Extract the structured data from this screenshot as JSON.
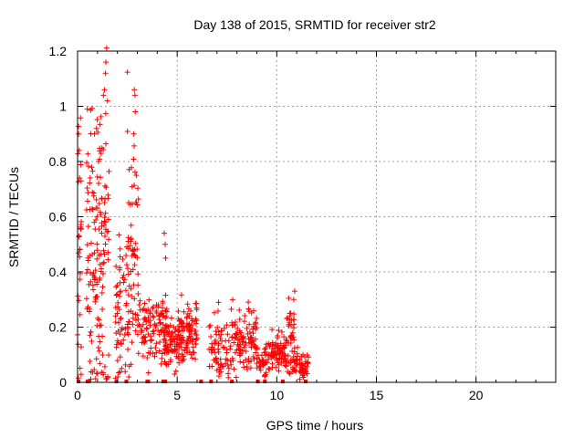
{
  "chart_data": {
    "type": "scatter",
    "title": "Day 138 of 2015, SRMTID for receiver str2",
    "xlabel": "GPS time / hours",
    "ylabel": "SRMTID / TECUs",
    "xlim": [
      0,
      24
    ],
    "ylim": [
      0,
      1.2
    ],
    "xticks": [
      0,
      5,
      10,
      15,
      20
    ],
    "xtick_labels": [
      "0",
      "5",
      "10",
      "15",
      "20"
    ],
    "yticks": [
      0,
      0.2,
      0.4,
      0.6,
      0.8,
      1,
      1.2
    ],
    "ytick_labels": [
      "0",
      "0.2",
      "0.4",
      "0.6",
      "0.8",
      "1",
      "1.2"
    ],
    "grid": true,
    "marker": "+",
    "color": "#ff0000",
    "series": [
      {
        "name": "SRMTID",
        "segments": [
          {
            "start": 0.0,
            "end": 0.2,
            "count": 28,
            "base": 0.5,
            "spread": 0.35
          },
          {
            "start": 0.45,
            "end": 1.6,
            "count": 160,
            "base": 0.45,
            "spread": 0.45
          },
          {
            "start": 1.9,
            "end": 2.6,
            "count": 70,
            "base": 0.25,
            "spread": 0.2
          },
          {
            "start": 2.5,
            "end": 3.1,
            "count": 60,
            "base": 0.45,
            "spread": 0.4
          },
          {
            "start": 3.0,
            "end": 3.5,
            "count": 35,
            "base": 0.2,
            "spread": 0.1
          },
          {
            "start": 3.5,
            "end": 4.5,
            "count": 80,
            "base": 0.2,
            "spread": 0.1
          },
          {
            "start": 4.4,
            "end": 5.3,
            "count": 90,
            "base": 0.15,
            "spread": 0.08
          },
          {
            "start": 5.2,
            "end": 6.0,
            "count": 80,
            "base": 0.18,
            "spread": 0.1
          },
          {
            "start": 6.6,
            "end": 7.7,
            "count": 70,
            "base": 0.13,
            "spread": 0.1
          },
          {
            "start": 7.7,
            "end": 9.0,
            "count": 110,
            "base": 0.16,
            "spread": 0.1
          },
          {
            "start": 9.0,
            "end": 9.6,
            "count": 40,
            "base": 0.08,
            "spread": 0.05
          },
          {
            "start": 9.6,
            "end": 10.5,
            "count": 80,
            "base": 0.1,
            "spread": 0.06
          },
          {
            "start": 10.5,
            "end": 10.9,
            "count": 40,
            "base": 0.18,
            "spread": 0.12
          },
          {
            "start": 10.8,
            "end": 11.6,
            "count": 60,
            "base": 0.06,
            "spread": 0.04
          }
        ],
        "peaks": [
          {
            "x": 0.05,
            "y": 0.9
          },
          {
            "x": 0.08,
            "y": 0.84
          },
          {
            "x": 0.1,
            "y": 0.74
          },
          {
            "x": 0.85,
            "y": 0.9
          },
          {
            "x": 0.95,
            "y": 0.92
          },
          {
            "x": 1.05,
            "y": 0.8
          },
          {
            "x": 1.3,
            "y": 1.04
          },
          {
            "x": 1.35,
            "y": 1.06
          },
          {
            "x": 1.4,
            "y": 1.12
          },
          {
            "x": 1.42,
            "y": 1.16
          },
          {
            "x": 1.5,
            "y": 1.02
          },
          {
            "x": 2.85,
            "y": 1.06
          },
          {
            "x": 2.88,
            "y": 1.04
          },
          {
            "x": 2.9,
            "y": 0.98
          },
          {
            "x": 2.82,
            "y": 0.9
          },
          {
            "x": 2.95,
            "y": 0.75
          },
          {
            "x": 4.35,
            "y": 0.54
          },
          {
            "x": 4.4,
            "y": 0.5
          },
          {
            "x": 4.42,
            "y": 0.45
          },
          {
            "x": 10.9,
            "y": 0.33
          },
          {
            "x": 10.85,
            "y": 0.3
          }
        ],
        "zero_points": [
          0.05,
          0.5,
          0.55,
          1.95,
          2.45,
          3.5,
          3.55,
          4.3,
          4.4,
          6.2,
          6.7,
          7.75,
          9.05,
          9.4,
          10.3,
          11.45
        ]
      }
    ]
  }
}
